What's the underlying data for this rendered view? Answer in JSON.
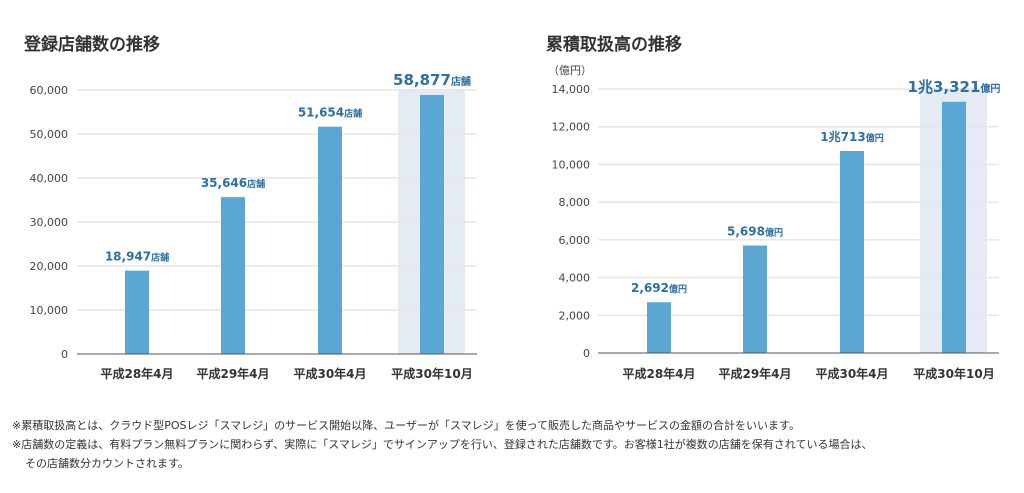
{
  "colors": {
    "bar": "#5ba7d4",
    "highlight": "#e4ebf5",
    "label": "#2e6fa3",
    "grid": "#e6e6e6"
  },
  "chart_data": [
    {
      "type": "bar",
      "title": "登録店舗数の推移",
      "ylabel": "",
      "categories": [
        "平成28年4月",
        "平成29年4月",
        "平成30年4月",
        "平成30年10月"
      ],
      "values": [
        18947,
        35646,
        51654,
        58877
      ],
      "value_labels": [
        {
          "number": "18,947",
          "unit": "店舗"
        },
        {
          "number": "35,646",
          "unit": "店舗"
        },
        {
          "number": "51,654",
          "unit": "店舗"
        },
        {
          "number": "58,877",
          "unit": "店舗"
        }
      ],
      "highlighted_category": "平成30年10月",
      "ylim": [
        0,
        60000
      ],
      "yticks": [
        "0",
        "10,000",
        "20,000",
        "30,000",
        "40,000",
        "50,000",
        "60,000"
      ],
      "grid": true
    },
    {
      "type": "bar",
      "title": "累積取扱高の推移",
      "ylabel": "（億円）",
      "categories": [
        "平成28年4月",
        "平成29年4月",
        "平成30年4月",
        "平成30年10月"
      ],
      "values": [
        2692,
        5698,
        10713,
        13321
      ],
      "value_labels": [
        {
          "number": "2,692",
          "unit": "億円"
        },
        {
          "number": "5,698",
          "unit": "億円"
        },
        {
          "number": "1兆713",
          "unit": "億円"
        },
        {
          "number": "1兆3,321",
          "unit": "億円"
        }
      ],
      "highlighted_category": "平成30年10月",
      "ylim": [
        0,
        14000
      ],
      "yticks": [
        "0",
        "2,000",
        "4,000",
        "6,000",
        "8,000",
        "10,000",
        "12,000",
        "14,000"
      ],
      "grid": true
    }
  ],
  "notes": [
    "※累積取扱高とは、クラウド型POSレジ「スマレジ」のサービス開始以降、ユーザーが「スマレジ」を使って販売した商品やサービスの金額の合計をいいます。",
    "※店舗数の定義は、有料プラン無料プランに関わらず、実際に「スマレジ」でサインアップを行い、登録された店舗数です。お客様1社が複数の店舗を保有されている場合は、",
    "その店舗数分カウントされます。"
  ]
}
